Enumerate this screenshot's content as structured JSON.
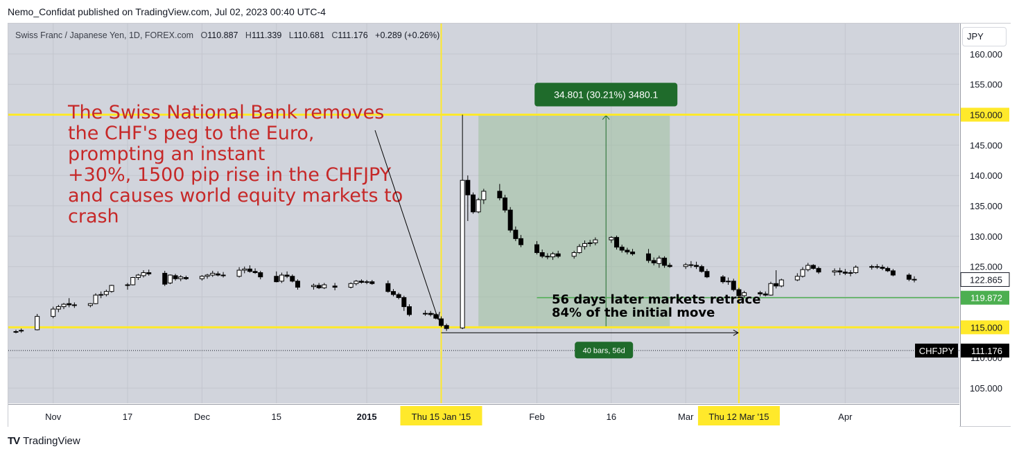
{
  "publisher_line": "Nemo_Confidat published on TradingView.com, Jul 02, 2023 00:40 UTC-4",
  "legend": {
    "symbol": "Swiss Franc / Japanese Yen, 1D, FOREX.com",
    "open_label": "O",
    "open": "110.887",
    "high_label": "H",
    "high": "111.339",
    "low_label": "L",
    "low": "110.681",
    "close_label": "C",
    "close": "111.176",
    "change": "+0.289 (+0.26%)"
  },
  "currency": "JPY",
  "footer_brand": "TradingView",
  "colors": {
    "plot_bg": "#d1d4dc",
    "highlight_line": "#ffe92b",
    "range_fill": "#9fbf9f",
    "range_label_bg": "#1f6b2b",
    "retrace_line": "#4caf50",
    "annotation_red": "#c62828",
    "candle_up": "#ffffff",
    "candle_down": "#000000"
  },
  "chart_data": {
    "type": "candlestick",
    "ylim": [
      102.5,
      165
    ],
    "y_ticks": [
      "105.000",
      "110.000",
      "115.000",
      "120.000",
      "125.000",
      "130.000",
      "135.000",
      "140.000",
      "145.000",
      "150.000",
      "155.000",
      "160.000"
    ],
    "x_ticks": [
      "Nov",
      "17",
      "Dec",
      "15",
      "2015",
      "Feb",
      "16",
      "Mar",
      "Apr"
    ],
    "x_tick_values": [
      "2014-11-03",
      "2014-11-17",
      "2014-12-01",
      "2014-12-15",
      "2015-01-01",
      "2015-02-02",
      "2015-02-16",
      "2015-03-02",
      "2015-04-01"
    ],
    "x_range": [
      "2014-10-27",
      "2015-04-20"
    ],
    "highlight_dates": [
      {
        "label": "Thu 15 Jan '15",
        "date": "2015-01-15"
      },
      {
        "label": "Thu 12 Mar '15",
        "date": "2015-03-12"
      }
    ],
    "price_labels": [
      {
        "label": "150.000",
        "value": 150.0,
        "style": "yellow"
      },
      {
        "label": "115.000",
        "value": 115.0,
        "style": "yellow"
      },
      {
        "label": "122.865",
        "value": 122.865,
        "style": "outline"
      },
      {
        "label": "119.872",
        "value": 119.872,
        "style": "green"
      },
      {
        "label": "111.176",
        "value": 111.176,
        "style": "black",
        "tag": "CHFJPY"
      }
    ],
    "horizontal_lines": [
      {
        "value": 150.0,
        "style": "yellow"
      },
      {
        "value": 115.0,
        "style": "yellow"
      },
      {
        "value": 119.872,
        "style": "green",
        "from": "2015-02-02",
        "to": "2015-04-20"
      },
      {
        "value": 111.176,
        "style": "dotted"
      }
    ],
    "range_box": {
      "from": "2015-01-22",
      "to": "2015-02-27",
      "low": 115.0,
      "high": 150.0,
      "label": "34.801 (30.21%) 3480.1"
    },
    "bars_measure": {
      "from": "2015-01-15",
      "to": "2015-03-12",
      "value": 114.1,
      "label": "40 bars, 56d"
    },
    "annotation_main": [
      "The Swiss National Bank removes",
      "the CHF's peg to the Euro,",
      "prompting an instant",
      "+30%, 1500 pip rise in the CHFJPY",
      "and causes world equity markets to",
      "crash"
    ],
    "annotation_retrace": [
      "56 days later markets retrace",
      "84% of the initial move"
    ],
    "candles": [
      {
        "d": "2014-10-27",
        "o": 114.3,
        "h": 114.6,
        "l": 114.0,
        "c": 114.3
      },
      {
        "d": "2014-10-28",
        "o": 114.4,
        "h": 114.8,
        "l": 114.1,
        "c": 114.5
      },
      {
        "d": "2014-10-31",
        "o": 114.6,
        "h": 117.2,
        "l": 114.5,
        "c": 116.8
      },
      {
        "d": "2014-11-03",
        "o": 116.8,
        "h": 118.4,
        "l": 116.5,
        "c": 118.0
      },
      {
        "d": "2014-11-04",
        "o": 118.0,
        "h": 118.7,
        "l": 117.5,
        "c": 118.4
      },
      {
        "d": "2014-11-05",
        "o": 118.4,
        "h": 119.0,
        "l": 118.0,
        "c": 118.8
      },
      {
        "d": "2014-11-06",
        "o": 118.9,
        "h": 119.8,
        "l": 118.3,
        "c": 118.7
      },
      {
        "d": "2014-11-07",
        "o": 118.7,
        "h": 119.1,
        "l": 118.2,
        "c": 118.6
      },
      {
        "d": "2014-11-10",
        "o": 118.6,
        "h": 119.0,
        "l": 118.3,
        "c": 118.9
      },
      {
        "d": "2014-11-11",
        "o": 118.9,
        "h": 120.6,
        "l": 118.8,
        "c": 120.3
      },
      {
        "d": "2014-11-12",
        "o": 120.3,
        "h": 120.9,
        "l": 119.8,
        "c": 120.4
      },
      {
        "d": "2014-11-13",
        "o": 120.4,
        "h": 121.2,
        "l": 120.1,
        "c": 120.9
      },
      {
        "d": "2014-11-14",
        "o": 120.9,
        "h": 122.0,
        "l": 120.7,
        "c": 121.9
      },
      {
        "d": "2014-11-17",
        "o": 121.9,
        "h": 122.3,
        "l": 121.2,
        "c": 122.0
      },
      {
        "d": "2014-11-18",
        "o": 122.0,
        "h": 123.3,
        "l": 121.9,
        "c": 123.2
      },
      {
        "d": "2014-11-19",
        "o": 123.2,
        "h": 123.8,
        "l": 122.8,
        "c": 123.6
      },
      {
        "d": "2014-11-20",
        "o": 123.5,
        "h": 124.4,
        "l": 123.2,
        "c": 124.0
      },
      {
        "d": "2014-11-21",
        "o": 124.0,
        "h": 124.5,
        "l": 123.5,
        "c": 123.8
      },
      {
        "d": "2014-11-24",
        "o": 123.9,
        "h": 124.3,
        "l": 121.8,
        "c": 122.1
      },
      {
        "d": "2014-11-25",
        "o": 122.3,
        "h": 123.7,
        "l": 122.1,
        "c": 123.6
      },
      {
        "d": "2014-11-26",
        "o": 123.5,
        "h": 123.8,
        "l": 122.7,
        "c": 123.0
      },
      {
        "d": "2014-11-27",
        "o": 123.0,
        "h": 123.6,
        "l": 122.6,
        "c": 123.3
      },
      {
        "d": "2014-11-28",
        "o": 123.2,
        "h": 123.5,
        "l": 122.8,
        "c": 123.0
      },
      {
        "d": "2014-12-01",
        "o": 123.0,
        "h": 123.6,
        "l": 122.7,
        "c": 123.4
      },
      {
        "d": "2014-12-02",
        "o": 123.4,
        "h": 123.8,
        "l": 123.0,
        "c": 123.6
      },
      {
        "d": "2014-12-03",
        "o": 123.6,
        "h": 124.3,
        "l": 123.3,
        "c": 123.9
      },
      {
        "d": "2014-12-04",
        "o": 123.8,
        "h": 124.2,
        "l": 123.4,
        "c": 123.6
      },
      {
        "d": "2014-12-05",
        "o": 123.6,
        "h": 124.1,
        "l": 123.2,
        "c": 123.5
      },
      {
        "d": "2014-12-08",
        "o": 123.4,
        "h": 124.9,
        "l": 123.2,
        "c": 124.4
      },
      {
        "d": "2014-12-09",
        "o": 124.4,
        "h": 125.0,
        "l": 123.9,
        "c": 124.6
      },
      {
        "d": "2014-12-10",
        "o": 124.6,
        "h": 125.2,
        "l": 124.0,
        "c": 124.2
      },
      {
        "d": "2014-12-11",
        "o": 124.2,
        "h": 124.7,
        "l": 123.8,
        "c": 124.0
      },
      {
        "d": "2014-12-12",
        "o": 124.0,
        "h": 124.3,
        "l": 122.9,
        "c": 123.3
      },
      {
        "d": "2014-12-15",
        "o": 123.4,
        "h": 124.2,
        "l": 122.4,
        "c": 122.5
      },
      {
        "d": "2014-12-16",
        "o": 122.6,
        "h": 124.0,
        "l": 122.3,
        "c": 123.6
      },
      {
        "d": "2014-12-17",
        "o": 123.6,
        "h": 124.2,
        "l": 123.1,
        "c": 123.4
      },
      {
        "d": "2014-12-18",
        "o": 123.4,
        "h": 123.7,
        "l": 122.4,
        "c": 122.6
      },
      {
        "d": "2014-12-19",
        "o": 122.6,
        "h": 122.9,
        "l": 121.2,
        "c": 121.6
      },
      {
        "d": "2014-12-22",
        "o": 121.7,
        "h": 122.2,
        "l": 121.2,
        "c": 121.9
      },
      {
        "d": "2014-12-23",
        "o": 121.9,
        "h": 122.3,
        "l": 121.3,
        "c": 121.5
      },
      {
        "d": "2014-12-24",
        "o": 121.5,
        "h": 122.3,
        "l": 121.3,
        "c": 122.0
      },
      {
        "d": "2014-12-26",
        "o": 121.8,
        "h": 122.3,
        "l": 121.1,
        "c": 121.6
      },
      {
        "d": "2014-12-29",
        "o": 121.6,
        "h": 122.4,
        "l": 121.4,
        "c": 122.2
      },
      {
        "d": "2014-12-30",
        "o": 122.2,
        "h": 122.8,
        "l": 121.9,
        "c": 122.6
      },
      {
        "d": "2014-12-31",
        "o": 122.6,
        "h": 122.9,
        "l": 122.2,
        "c": 122.4
      },
      {
        "d": "2015-01-01",
        "o": 122.4,
        "h": 122.8,
        "l": 122.1,
        "c": 122.5
      },
      {
        "d": "2015-01-02",
        "o": 122.5,
        "h": 122.8,
        "l": 122.0,
        "c": 122.2
      },
      {
        "d": "2015-01-05",
        "o": 122.2,
        "h": 122.7,
        "l": 120.7,
        "c": 120.9
      },
      {
        "d": "2015-01-06",
        "o": 120.9,
        "h": 121.3,
        "l": 120.1,
        "c": 120.4
      },
      {
        "d": "2015-01-07",
        "o": 120.4,
        "h": 120.7,
        "l": 119.6,
        "c": 119.9
      },
      {
        "d": "2015-01-08",
        "o": 119.9,
        "h": 120.2,
        "l": 117.7,
        "c": 118.4
      },
      {
        "d": "2015-01-09",
        "o": 118.4,
        "h": 118.8,
        "l": 116.8,
        "c": 117.1
      },
      {
        "d": "2015-01-12",
        "o": 117.3,
        "h": 117.8,
        "l": 116.9,
        "c": 117.3
      },
      {
        "d": "2015-01-13",
        "o": 117.3,
        "h": 117.7,
        "l": 116.8,
        "c": 117.1
      },
      {
        "d": "2015-01-14",
        "o": 117.1,
        "h": 117.3,
        "l": 116.3,
        "c": 116.5
      },
      {
        "d": "2015-01-15",
        "o": 116.4,
        "h": 116.8,
        "l": 115.0,
        "c": 115.3
      },
      {
        "d": "2015-01-16",
        "o": 115.3,
        "h": 115.6,
        "l": 114.4,
        "c": 114.8
      },
      {
        "d": "2015-01-19",
        "o": 114.9,
        "h": 150.0,
        "l": 114.7,
        "c": 139.2
      },
      {
        "d": "2015-01-20",
        "o": 139.2,
        "h": 140.0,
        "l": 132.5,
        "c": 136.8
      },
      {
        "d": "2015-01-21",
        "o": 136.8,
        "h": 137.2,
        "l": 133.7,
        "c": 134.0
      },
      {
        "d": "2015-01-22",
        "o": 134.0,
        "h": 136.3,
        "l": 133.8,
        "c": 136.0
      },
      {
        "d": "2015-01-23",
        "o": 136.0,
        "h": 137.8,
        "l": 135.3,
        "c": 137.4
      },
      {
        "d": "2015-01-26",
        "o": 137.4,
        "h": 138.6,
        "l": 135.9,
        "c": 136.3
      },
      {
        "d": "2015-01-27",
        "o": 136.3,
        "h": 136.8,
        "l": 133.9,
        "c": 134.3
      },
      {
        "d": "2015-01-28",
        "o": 134.3,
        "h": 134.8,
        "l": 130.6,
        "c": 131.0
      },
      {
        "d": "2015-01-29",
        "o": 131.0,
        "h": 131.6,
        "l": 129.2,
        "c": 129.6
      },
      {
        "d": "2015-01-30",
        "o": 129.6,
        "h": 130.2,
        "l": 128.2,
        "c": 128.6
      },
      {
        "d": "2015-02-02",
        "o": 128.6,
        "h": 129.2,
        "l": 127.0,
        "c": 127.3
      },
      {
        "d": "2015-02-03",
        "o": 127.3,
        "h": 127.8,
        "l": 126.4,
        "c": 126.7
      },
      {
        "d": "2015-02-04",
        "o": 126.7,
        "h": 127.2,
        "l": 126.2,
        "c": 126.6
      },
      {
        "d": "2015-02-05",
        "o": 126.6,
        "h": 127.4,
        "l": 126.1,
        "c": 127.1
      },
      {
        "d": "2015-02-06",
        "o": 127.1,
        "h": 127.6,
        "l": 126.4,
        "c": 126.7
      },
      {
        "d": "2015-02-09",
        "o": 126.7,
        "h": 127.6,
        "l": 126.3,
        "c": 127.3
      },
      {
        "d": "2015-02-10",
        "o": 127.3,
        "h": 128.7,
        "l": 127.1,
        "c": 128.3
      },
      {
        "d": "2015-02-11",
        "o": 128.3,
        "h": 129.3,
        "l": 127.8,
        "c": 128.8
      },
      {
        "d": "2015-02-12",
        "o": 128.8,
        "h": 129.4,
        "l": 128.3,
        "c": 128.9
      },
      {
        "d": "2015-02-13",
        "o": 128.9,
        "h": 129.8,
        "l": 128.5,
        "c": 129.4
      },
      {
        "d": "2015-02-16",
        "o": 129.4,
        "h": 130.0,
        "l": 128.9,
        "c": 129.8
      },
      {
        "d": "2015-02-17",
        "o": 129.8,
        "h": 130.1,
        "l": 127.8,
        "c": 128.2
      },
      {
        "d": "2015-02-18",
        "o": 128.2,
        "h": 128.6,
        "l": 127.3,
        "c": 127.7
      },
      {
        "d": "2015-02-19",
        "o": 127.7,
        "h": 128.1,
        "l": 127.0,
        "c": 127.4
      },
      {
        "d": "2015-02-20",
        "o": 127.4,
        "h": 127.9,
        "l": 126.8,
        "c": 127.1
      },
      {
        "d": "2015-02-23",
        "o": 127.1,
        "h": 127.9,
        "l": 125.6,
        "c": 126.0
      },
      {
        "d": "2015-02-24",
        "o": 126.0,
        "h": 126.5,
        "l": 125.2,
        "c": 125.6
      },
      {
        "d": "2015-02-25",
        "o": 125.5,
        "h": 126.8,
        "l": 124.8,
        "c": 126.4
      },
      {
        "d": "2015-02-26",
        "o": 126.4,
        "h": 126.7,
        "l": 124.8,
        "c": 125.2
      },
      {
        "d": "2015-02-27",
        "o": 125.2,
        "h": 125.6,
        "l": 124.8,
        "c": 125.0
      },
      {
        "d": "2015-03-02",
        "o": 125.0,
        "h": 125.6,
        "l": 124.6,
        "c": 125.3
      },
      {
        "d": "2015-03-03",
        "o": 125.3,
        "h": 125.9,
        "l": 124.8,
        "c": 125.2
      },
      {
        "d": "2015-03-04",
        "o": 125.2,
        "h": 125.8,
        "l": 124.6,
        "c": 125.0
      },
      {
        "d": "2015-03-05",
        "o": 125.0,
        "h": 125.3,
        "l": 124.0,
        "c": 124.2
      },
      {
        "d": "2015-03-06",
        "o": 124.2,
        "h": 124.6,
        "l": 123.1,
        "c": 123.3
      },
      {
        "d": "2015-03-09",
        "o": 123.3,
        "h": 123.6,
        "l": 122.2,
        "c": 122.5
      },
      {
        "d": "2015-03-10",
        "o": 122.5,
        "h": 123.2,
        "l": 122.0,
        "c": 122.6
      },
      {
        "d": "2015-03-11",
        "o": 122.6,
        "h": 123.0,
        "l": 120.9,
        "c": 121.2
      },
      {
        "d": "2015-03-12",
        "o": 121.2,
        "h": 121.5,
        "l": 119.9,
        "c": 120.2
      },
      {
        "d": "2015-03-13",
        "o": 120.2,
        "h": 121.0,
        "l": 119.9,
        "c": 120.7
      },
      {
        "d": "2015-03-16",
        "o": 120.7,
        "h": 121.0,
        "l": 120.1,
        "c": 120.5
      },
      {
        "d": "2015-03-17",
        "o": 120.5,
        "h": 120.9,
        "l": 120.1,
        "c": 120.3
      },
      {
        "d": "2015-03-18",
        "o": 120.3,
        "h": 122.5,
        "l": 120.2,
        "c": 122.2
      },
      {
        "d": "2015-03-19",
        "o": 122.2,
        "h": 124.4,
        "l": 121.4,
        "c": 121.8
      },
      {
        "d": "2015-03-20",
        "o": 121.8,
        "h": 123.0,
        "l": 121.6,
        "c": 122.8
      },
      {
        "d": "2015-03-23",
        "o": 122.8,
        "h": 123.9,
        "l": 122.6,
        "c": 123.4
      },
      {
        "d": "2015-03-24",
        "o": 123.4,
        "h": 124.9,
        "l": 123.2,
        "c": 124.5
      },
      {
        "d": "2015-03-25",
        "o": 124.5,
        "h": 125.6,
        "l": 124.2,
        "c": 125.2
      },
      {
        "d": "2015-03-26",
        "o": 125.2,
        "h": 125.4,
        "l": 124.5,
        "c": 124.7
      },
      {
        "d": "2015-03-27",
        "o": 124.7,
        "h": 125.0,
        "l": 123.8,
        "c": 124.1
      },
      {
        "d": "2015-03-30",
        "o": 124.1,
        "h": 124.7,
        "l": 123.5,
        "c": 124.3
      },
      {
        "d": "2015-03-31",
        "o": 124.3,
        "h": 124.8,
        "l": 123.6,
        "c": 124.1
      },
      {
        "d": "2015-04-01",
        "o": 124.1,
        "h": 124.6,
        "l": 123.6,
        "c": 123.9
      },
      {
        "d": "2015-04-02",
        "o": 123.9,
        "h": 124.4,
        "l": 123.4,
        "c": 124.0
      },
      {
        "d": "2015-04-03",
        "o": 124.0,
        "h": 125.2,
        "l": 123.8,
        "c": 124.9
      },
      {
        "d": "2015-04-06",
        "o": 124.9,
        "h": 125.3,
        "l": 124.5,
        "c": 125.0
      },
      {
        "d": "2015-04-07",
        "o": 125.0,
        "h": 125.4,
        "l": 124.6,
        "c": 124.9
      },
      {
        "d": "2015-04-08",
        "o": 124.9,
        "h": 125.3,
        "l": 124.4,
        "c": 124.7
      },
      {
        "d": "2015-04-09",
        "o": 124.7,
        "h": 125.0,
        "l": 124.1,
        "c": 124.3
      },
      {
        "d": "2015-04-10",
        "o": 124.3,
        "h": 124.6,
        "l": 123.4,
        "c": 123.6
      },
      {
        "d": "2015-04-13",
        "o": 123.6,
        "h": 123.9,
        "l": 122.6,
        "c": 122.9
      },
      {
        "d": "2015-04-14",
        "o": 122.9,
        "h": 123.4,
        "l": 122.4,
        "c": 122.9
      }
    ]
  }
}
